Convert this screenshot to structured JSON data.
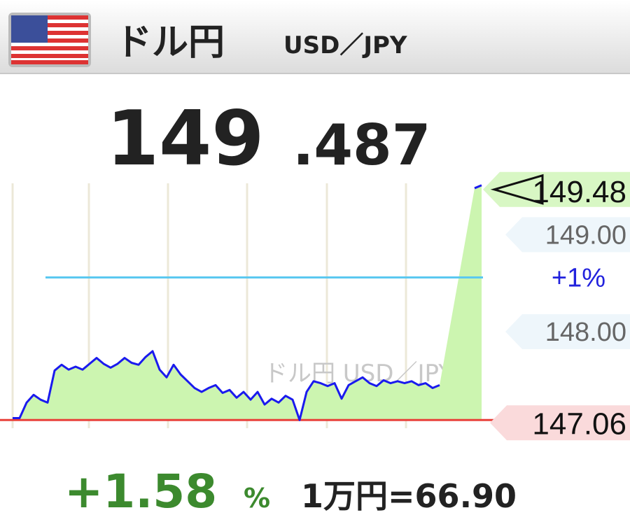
{
  "header": {
    "title": "ドル円",
    "subtitle": "USD／JPY"
  },
  "price": {
    "integer": "149",
    "decimal": ".487"
  },
  "footer": {
    "change": "+1.58",
    "change_unit": "%",
    "conversion": "1万円=66.90"
  },
  "chart_data": {
    "type": "line",
    "watermark": "ドル円 USD／JPY",
    "color": "#1a1aee",
    "values": [
      147.08,
      147.08,
      147.24,
      147.32,
      147.27,
      147.24,
      147.57,
      147.63,
      147.58,
      147.61,
      147.58,
      147.64,
      147.7,
      147.64,
      147.6,
      147.64,
      147.7,
      147.65,
      147.63,
      147.71,
      147.77,
      147.58,
      147.5,
      147.63,
      147.53,
      147.46,
      147.39,
      147.35,
      147.39,
      147.42,
      147.34,
      147.37,
      147.29,
      147.35,
      147.27,
      147.35,
      147.22,
      147.28,
      147.24,
      147.31,
      147.27,
      147.06,
      147.35,
      147.46,
      147.44,
      147.41,
      147.44,
      147.28,
      147.42,
      147.46,
      147.5,
      147.44,
      147.41,
      147.47,
      147.44,
      147.46,
      147.44,
      147.46,
      147.42,
      147.44,
      147.39,
      147.42,
      null,
      null,
      null,
      null,
      149.45,
      149.48
    ],
    "value_labels": [
      null,
      null,
      null,
      null,
      null,
      null,
      null,
      null,
      null,
      null,
      null,
      null,
      null,
      null,
      null,
      null,
      null,
      null,
      null,
      null,
      null,
      null,
      null,
      null,
      null,
      null,
      null,
      null,
      null,
      null,
      null,
      null,
      null,
      null,
      null,
      null,
      null,
      null,
      null,
      null,
      null,
      null,
      null,
      null,
      null,
      null,
      null,
      null,
      null,
      null,
      null,
      null,
      null,
      null,
      null,
      null,
      null,
      null,
      null,
      null,
      null,
      null,
      null,
      null,
      null,
      null,
      null,
      "149.48"
    ],
    "ylim": [
      146.99,
      149.5
    ],
    "yticks": [
      {
        "value": 149,
        "label": "149.00"
      },
      {
        "value": 148,
        "label": "148.00"
      }
    ],
    "reference_lines": [
      {
        "value": 147.06,
        "label": "147.06",
        "color": "#e8403a"
      },
      {
        "value": 148.53,
        "label": "+1%",
        "color": "#5bc8f0"
      }
    ],
    "fill_color": "#ccf5b0"
  }
}
